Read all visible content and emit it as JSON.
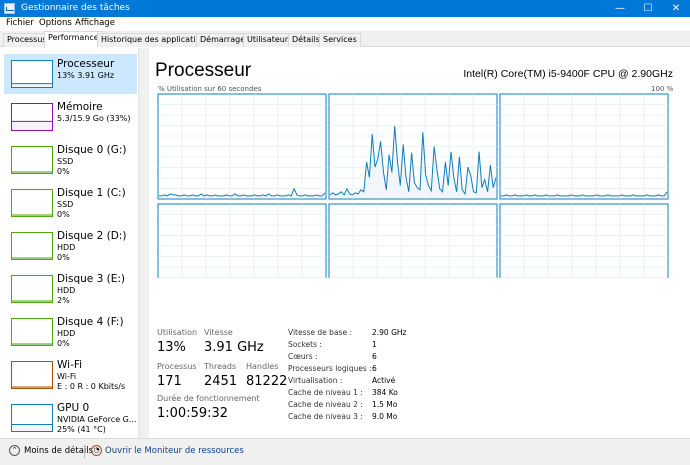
{
  "window": {
    "title": "Gestionnaire des tâches",
    "minimize": "—",
    "maximize": "☐",
    "close": "✕"
  },
  "menu": [
    "Fichier",
    "Options",
    "Affichage"
  ],
  "tabs": [
    "Processus",
    "Performance",
    "Historique des applications",
    "Démarrage",
    "Utilisateurs",
    "Détails",
    "Services"
  ],
  "sidebar": [
    {
      "name": "Processeur",
      "line2": "13% 3.91 GHz",
      "line3": "",
      "color": "#117dbb",
      "fill": "#f1f6fa",
      "level": 0.13
    },
    {
      "name": "Mémoire",
      "line2": "5.3/15.9 Go (33%)",
      "line3": "",
      "color": "#8b12ae",
      "fill": "#f4f2f4",
      "level": 0.33
    },
    {
      "name": "Disque 0 (G:)",
      "line2": "SSD",
      "line3": "0%",
      "color": "#4da60c",
      "fill": "#eff7ea",
      "level": 0
    },
    {
      "name": "Disque 1 (C:)",
      "line2": "SSD",
      "line3": "0%",
      "color": "#4da60c",
      "fill": "#eff7ea",
      "level": 0
    },
    {
      "name": "Disque 2 (D:)",
      "line2": "HDD",
      "line3": "0%",
      "color": "#4da60c",
      "fill": "#eff7ea",
      "level": 0
    },
    {
      "name": "Disque 3 (E:)",
      "line2": "HDD",
      "line3": "2%",
      "color": "#4da60c",
      "fill": "#eff7ea",
      "level": 0.02
    },
    {
      "name": "Disque 4 (F:)",
      "line2": "HDD",
      "line3": "0%",
      "color": "#4da60c",
      "fill": "#eff7ea",
      "level": 0
    },
    {
      "name": "Wi-Fi",
      "line2": "Wi-Fi",
      "line3": "E : 0 R : 0 Kbits/s",
      "color": "#a74f01",
      "fill": "#fcf3eb",
      "level": 0
    },
    {
      "name": "GPU 0",
      "line2": "NVIDIA GeForce G...",
      "line3": "25% (41 °C)",
      "color": "#117dbb",
      "fill": "#f1f6fa",
      "level": 0.25
    }
  ],
  "header": {
    "title": "Processeur",
    "cpu": "Intel(R) Core(TM) i5-9400F CPU @ 2.90GHz",
    "graph_label": "% Utilisation sur 60 secondes",
    "graph_max": "100 %"
  },
  "stats": {
    "utilisation_label": "Utilisation",
    "utilisation": "13%",
    "vitesse_label": "Vitesse",
    "vitesse": "3.91 GHz",
    "processus_label": "Processus",
    "processus": "171",
    "threads_label": "Threads",
    "threads": "2451",
    "handles_label": "Handles",
    "handles": "81222",
    "uptime_label": "Durée de fonctionnement",
    "uptime": "1:00:59:32"
  },
  "details": [
    {
      "k": "Vitesse de base :",
      "v": "2.90 GHz"
    },
    {
      "k": "Sockets :",
      "v": "1"
    },
    {
      "k": "Cœurs :",
      "v": "6"
    },
    {
      "k": "Processeurs logiques :",
      "v": "6"
    },
    {
      "k": "Virtualisation :",
      "v": "Activé"
    },
    {
      "k": "Cache de niveau 1 :",
      "v": "384 Ko"
    },
    {
      "k": "Cache de niveau 2 :",
      "v": "1.5 Mo"
    },
    {
      "k": "Cache de niveau 3 :",
      "v": "9.0 Mo"
    }
  ],
  "footer": {
    "less": "Moins de détails",
    "monitor": "Ouvrir le Moniteur de ressources"
  },
  "colors": {
    "accent": "#0078d7",
    "cpu_line": "#117dbb",
    "grid": "#d9eaf4"
  },
  "core_usage": [
    [
      2,
      2,
      3,
      2,
      4,
      3,
      3,
      2,
      2,
      3,
      2,
      2,
      3,
      2,
      2,
      4,
      2,
      3,
      2,
      2,
      3,
      2,
      2,
      2,
      3,
      2,
      2,
      4,
      2,
      2,
      3,
      2,
      2,
      2,
      3,
      2,
      2,
      3,
      2,
      4,
      2,
      2,
      3,
      2,
      2,
      2,
      3,
      2,
      9,
      3,
      2,
      2,
      3,
      2,
      2,
      2,
      3,
      2,
      2,
      5
    ],
    [
      3,
      5,
      3,
      4,
      6,
      3,
      9,
      4,
      3,
      5,
      4,
      8,
      6,
      35,
      20,
      62,
      30,
      38,
      55,
      25,
      8,
      42,
      25,
      70,
      35,
      12,
      52,
      20,
      6,
      44,
      15,
      10,
      8,
      64,
      22,
      12,
      7,
      50,
      28,
      9,
      6,
      35,
      12,
      45,
      20,
      6,
      40,
      8,
      4,
      30,
      22,
      6,
      5,
      45,
      10,
      18,
      6,
      32,
      10,
      20
    ],
    [
      2,
      2,
      3,
      2,
      2,
      3,
      2,
      2,
      2,
      3,
      2,
      2,
      3,
      2,
      2,
      2,
      3,
      2,
      2,
      2,
      3,
      2,
      2,
      2,
      2,
      3,
      2,
      2,
      2,
      3,
      2,
      2,
      2,
      2,
      3,
      2,
      2,
      2,
      3,
      2,
      2,
      2,
      2,
      3,
      2,
      2,
      2,
      3,
      2,
      2,
      2,
      2,
      3,
      2,
      2,
      2,
      3,
      2,
      2,
      6
    ],
    [
      2,
      3,
      2,
      2,
      3,
      2,
      3,
      2,
      2,
      3,
      2,
      2,
      3,
      2,
      3,
      2,
      2,
      3,
      2,
      2,
      3,
      2,
      2,
      3,
      2,
      2,
      3,
      2,
      2,
      2,
      3,
      2,
      2,
      3,
      2,
      2,
      3,
      2,
      2,
      3,
      2,
      2,
      2,
      3,
      2,
      14,
      3,
      2,
      2,
      3,
      2,
      2,
      3,
      2,
      2,
      3,
      2,
      2,
      3,
      2
    ],
    [
      3,
      2,
      3,
      3,
      2,
      4,
      3,
      2,
      3,
      3,
      2,
      4,
      3,
      2,
      3,
      2,
      3,
      4,
      2,
      3,
      3,
      2,
      3,
      4,
      2,
      3,
      2,
      3,
      3,
      2,
      3,
      4,
      2,
      3,
      2,
      3,
      3,
      2,
      4,
      3,
      2,
      3,
      2,
      4,
      3,
      2,
      3,
      3,
      2,
      3,
      2,
      3,
      4,
      2,
      3,
      2,
      3,
      3,
      2,
      4
    ],
    [
      2,
      3,
      2,
      2,
      3,
      2,
      2,
      4,
      2,
      3,
      2,
      2,
      3,
      2,
      2,
      3,
      2,
      4,
      2,
      3,
      2,
      2,
      3,
      5,
      2,
      3,
      2,
      2,
      4,
      2,
      3,
      2,
      2,
      3,
      2,
      4,
      2,
      3,
      2,
      2,
      3,
      2,
      5,
      2,
      3,
      2,
      2,
      3,
      2,
      4,
      2,
      3,
      2,
      9,
      3,
      2,
      3,
      4,
      2,
      6
    ]
  ]
}
